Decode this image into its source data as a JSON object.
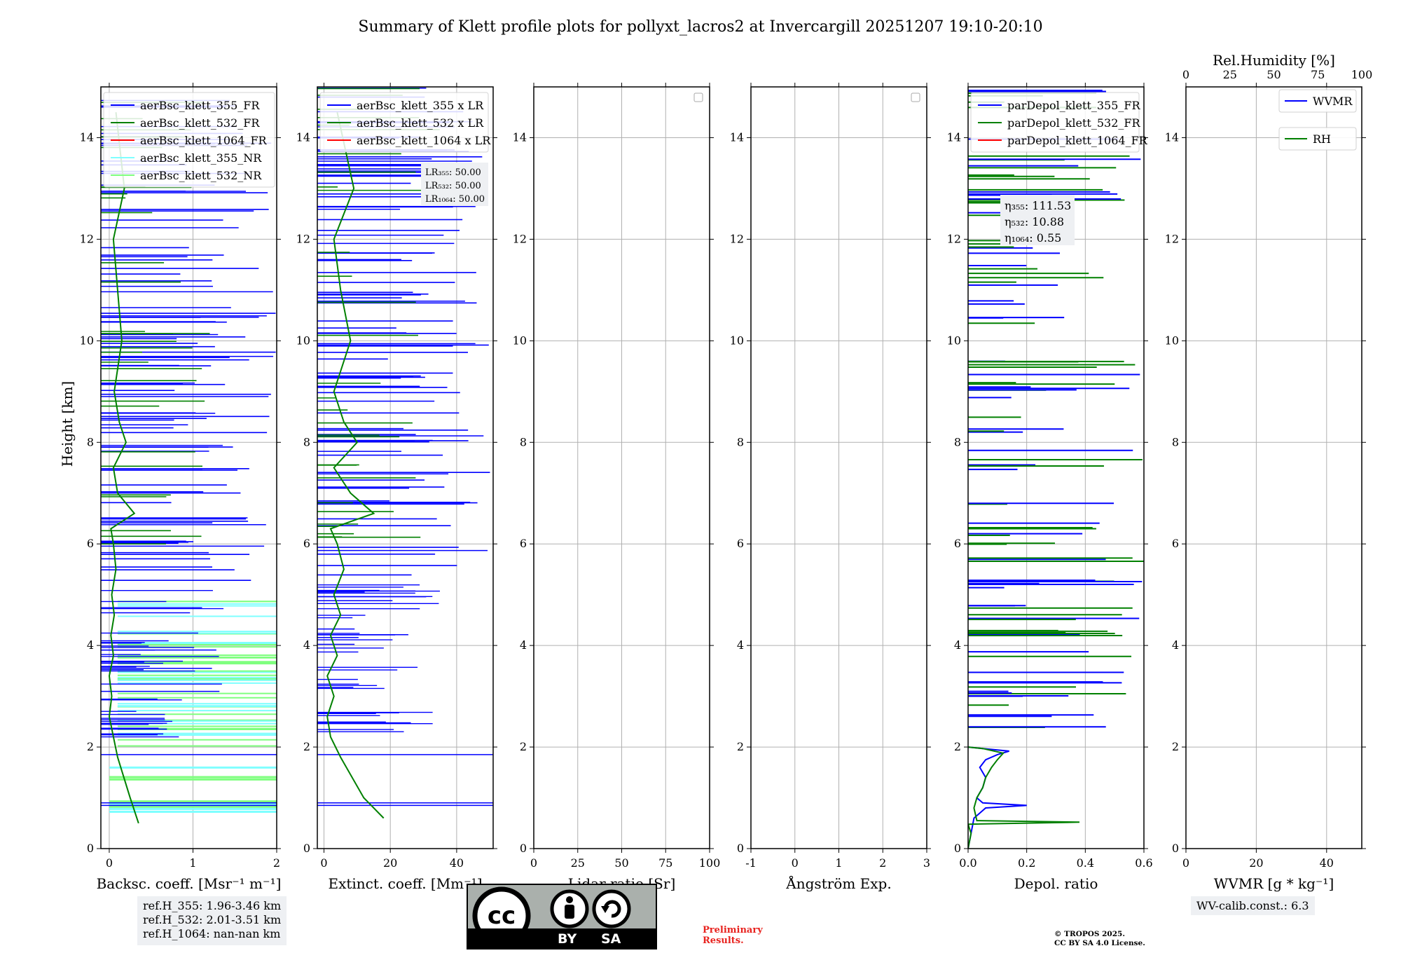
{
  "colors": {
    "blue": "#0000ff",
    "green": "#008000",
    "red": "#ff0000",
    "cyan": "#7fffff",
    "lightgreen": "#7fff7f",
    "grid": "#b0b0b0",
    "prelim": "#e8231f",
    "box_bg": "#eef0f3"
  },
  "chart_data": {
    "type": "line",
    "title": "Summary of Klett profile plots for pollyxt_lacros2 at Invercargill 20251207 19:10-20:10",
    "ylabel": "Height [km]",
    "ylim": [
      0,
      15
    ],
    "yticks": [
      0,
      2,
      4,
      6,
      8,
      10,
      12,
      14
    ],
    "panels": [
      {
        "id": "backscatter",
        "xlabel": "Backsc. coeff. [Msr⁻¹ m⁻¹]",
        "xlim": [
          -0.1,
          2
        ],
        "xticks": [
          0,
          1,
          2
        ],
        "legend_loc": "upper-left",
        "legend": [
          {
            "label": "aerBsc_klett_355_FR",
            "color": "blue"
          },
          {
            "label": "aerBsc_klett_532_FR",
            "color": "green"
          },
          {
            "label": "aerBsc_klett_1064_FR",
            "color": "red"
          },
          {
            "label": "aerBsc_klett_355_NR",
            "color": "cyan"
          },
          {
            "label": "aerBsc_klett_532_NR",
            "color": "lightgreen"
          }
        ],
        "series": [
          {
            "name": "aerBsc_klett_532_FR",
            "color": "green",
            "x": [
              0.35,
              0.25,
              0.1,
              0.05,
              0.0,
              0.03,
              0.0,
              0.05,
              0.02,
              0.06,
              0.03,
              0.08,
              0.05,
              0.02,
              0.3,
              0.1,
              0.05,
              0.2,
              0.12,
              0.06,
              0.15,
              0.1,
              0.05,
              0.18,
              0.08
            ],
            "y": [
              0.5,
              1.0,
              1.8,
              2.2,
              2.6,
              3.0,
              3.4,
              3.8,
              4.2,
              4.6,
              5.0,
              5.5,
              6.0,
              6.3,
              6.6,
              7.0,
              7.5,
              8.0,
              8.4,
              9.0,
              10.0,
              11.0,
              12.0,
              13.0,
              14.5
            ]
          }
        ]
      },
      {
        "id": "extinction",
        "xlabel": "Extinct. coeff. [Mm⁻¹]",
        "xlim": [
          -2,
          51
        ],
        "xticks": [
          0,
          20,
          40
        ],
        "legend_loc": "upper-left",
        "legend": [
          {
            "label": "aerBsc_klett_355 x LR",
            "color": "blue"
          },
          {
            "label": "aerBsc_klett_532 x LR",
            "color": "green"
          },
          {
            "label": "aerBsc_klett_1064 x LR",
            "color": "red"
          }
        ],
        "lr_text": [
          "LR₃₅₅: 50.00",
          "LR₅₃₂: 50.00",
          "LR₁₀₆₄: 50.00"
        ],
        "series": [
          {
            "name": "aerBsc_klett_532 x LR",
            "color": "green",
            "x": [
              18,
              12,
              5,
              2,
              1,
              3,
              1,
              4,
              2,
              5,
              3,
              6,
              4,
              2,
              15,
              8,
              3,
              10,
              6,
              3,
              8,
              5,
              3,
              9,
              4
            ],
            "y": [
              0.6,
              1.0,
              1.8,
              2.2,
              2.6,
              3.0,
              3.4,
              3.8,
              4.2,
              4.6,
              5.0,
              5.5,
              6.0,
              6.3,
              6.6,
              7.0,
              7.5,
              8.0,
              8.4,
              9.0,
              10.0,
              11.0,
              12.0,
              13.0,
              14.5
            ]
          }
        ]
      },
      {
        "id": "lidar-ratio",
        "xlabel": "Lidar ratio [Sr]",
        "xlim": [
          0,
          100
        ],
        "xticks": [
          0,
          25,
          50,
          75,
          100
        ],
        "legend_loc": "upper-right",
        "legend": [],
        "series": []
      },
      {
        "id": "angstrom",
        "xlabel": "Ångström Exp.",
        "xlim": [
          -1,
          3
        ],
        "xticks": [
          -1,
          0,
          1,
          2,
          3
        ],
        "legend_loc": "upper-right",
        "legend": [],
        "series": []
      },
      {
        "id": "depol",
        "xlabel": "Depol. ratio",
        "xlim": [
          0,
          0.6
        ],
        "xticks": [
          0.0,
          0.2,
          0.4,
          0.6
        ],
        "legend_loc": "upper-left",
        "legend": [
          {
            "label": "parDepol_klett_355_FR",
            "color": "blue"
          },
          {
            "label": "parDepol_klett_532_FR",
            "color": "green"
          },
          {
            "label": "parDepol_klett_1064_FR",
            "color": "red"
          }
        ],
        "eta_text": [
          "η₃₅₅: 111.53",
          "η₅₃₂: 10.88",
          "η₁₀₆₄: 0.55"
        ],
        "series": [
          {
            "name": "parDepol_klett_355_FR",
            "color": "blue",
            "x": [
              0.0,
              0.01,
              0.02,
              0.06,
              0.2,
              0.05,
              0.03,
              0.05,
              0.06,
              0.04,
              0.06,
              0.1,
              0.14,
              0.05,
              0.0
            ],
            "y": [
              0.0,
              0.3,
              0.6,
              0.8,
              0.85,
              0.9,
              1.0,
              1.2,
              1.4,
              1.6,
              1.75,
              1.85,
              1.92,
              1.97,
              2.0
            ]
          },
          {
            "name": "parDepol_klett_532_FR",
            "color": "green",
            "x": [
              0.0,
              0.01,
              0.0,
              0.38,
              0.03,
              0.02,
              0.03,
              0.05,
              0.06,
              0.08,
              0.1,
              0.12,
              0.05,
              0.0
            ],
            "y": [
              0.0,
              0.3,
              0.48,
              0.52,
              0.55,
              0.8,
              1.0,
              1.2,
              1.4,
              1.6,
              1.75,
              1.88,
              1.97,
              2.0
            ]
          }
        ]
      },
      {
        "id": "wvmr",
        "xlabel": "WVMR [g * kg⁻¹]",
        "xlim": [
          0,
          50
        ],
        "xticks": [
          0,
          20,
          40
        ],
        "top_xlabel": "Rel.Humidity [%]",
        "top_xlim": [
          0,
          100
        ],
        "top_xticks": [
          0,
          25,
          50,
          75,
          100
        ],
        "legend_loc": "upper-right",
        "legend": [
          {
            "label": "WVMR",
            "color": "blue"
          },
          {
            "label": "RH",
            "color": "green"
          }
        ],
        "series": []
      }
    ]
  },
  "ref_heights": [
    "ref.H_355: 1.96-3.46 km",
    "ref.H_532: 2.01-3.51 km",
    "ref.H_1064: nan-nan km"
  ],
  "wv_calib": "WV-calib.const.: 6.3",
  "license": {
    "cc": "cc",
    "by": "BY",
    "sa": "SA"
  },
  "preliminary": [
    "Preliminary",
    "Results."
  ],
  "copyright": [
    "© TROPOS 2025.",
    "CC BY SA 4.0 License."
  ]
}
